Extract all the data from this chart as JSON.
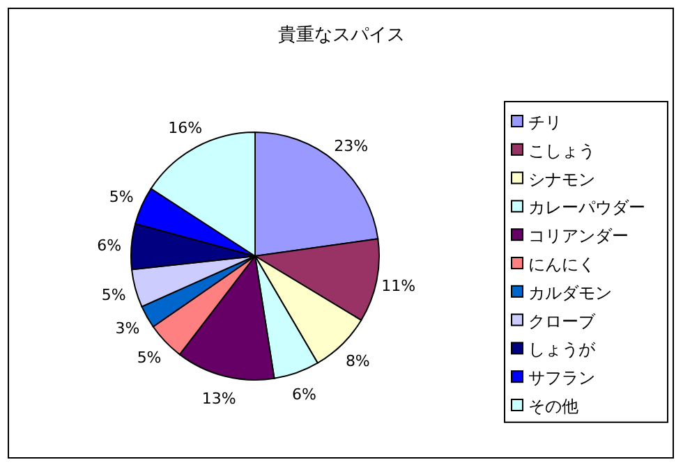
{
  "chart_data": {
    "type": "pie",
    "title": "貴重なスパイス",
    "categories": [
      "チリ",
      "こしょう",
      "シナモン",
      "カレーパウダー",
      "コリアンダー",
      "にんにく",
      "カルダモン",
      "クローブ",
      "しょうが",
      "サフラン",
      "その他"
    ],
    "values": [
      23,
      11,
      8,
      6,
      13,
      5,
      3,
      5,
      6,
      5,
      16
    ],
    "value_labels": [
      "23%",
      "11%",
      "8%",
      "6%",
      "13%",
      "5%",
      "3%",
      "5%",
      "6%",
      "5%",
      "16%"
    ],
    "colors": [
      "#9999ff",
      "#993366",
      "#ffffcc",
      "#ccffff",
      "#660066",
      "#ff8080",
      "#0066cc",
      "#ccccff",
      "#000080",
      "#0000ff",
      "#ccffff"
    ],
    "legend": "right"
  }
}
